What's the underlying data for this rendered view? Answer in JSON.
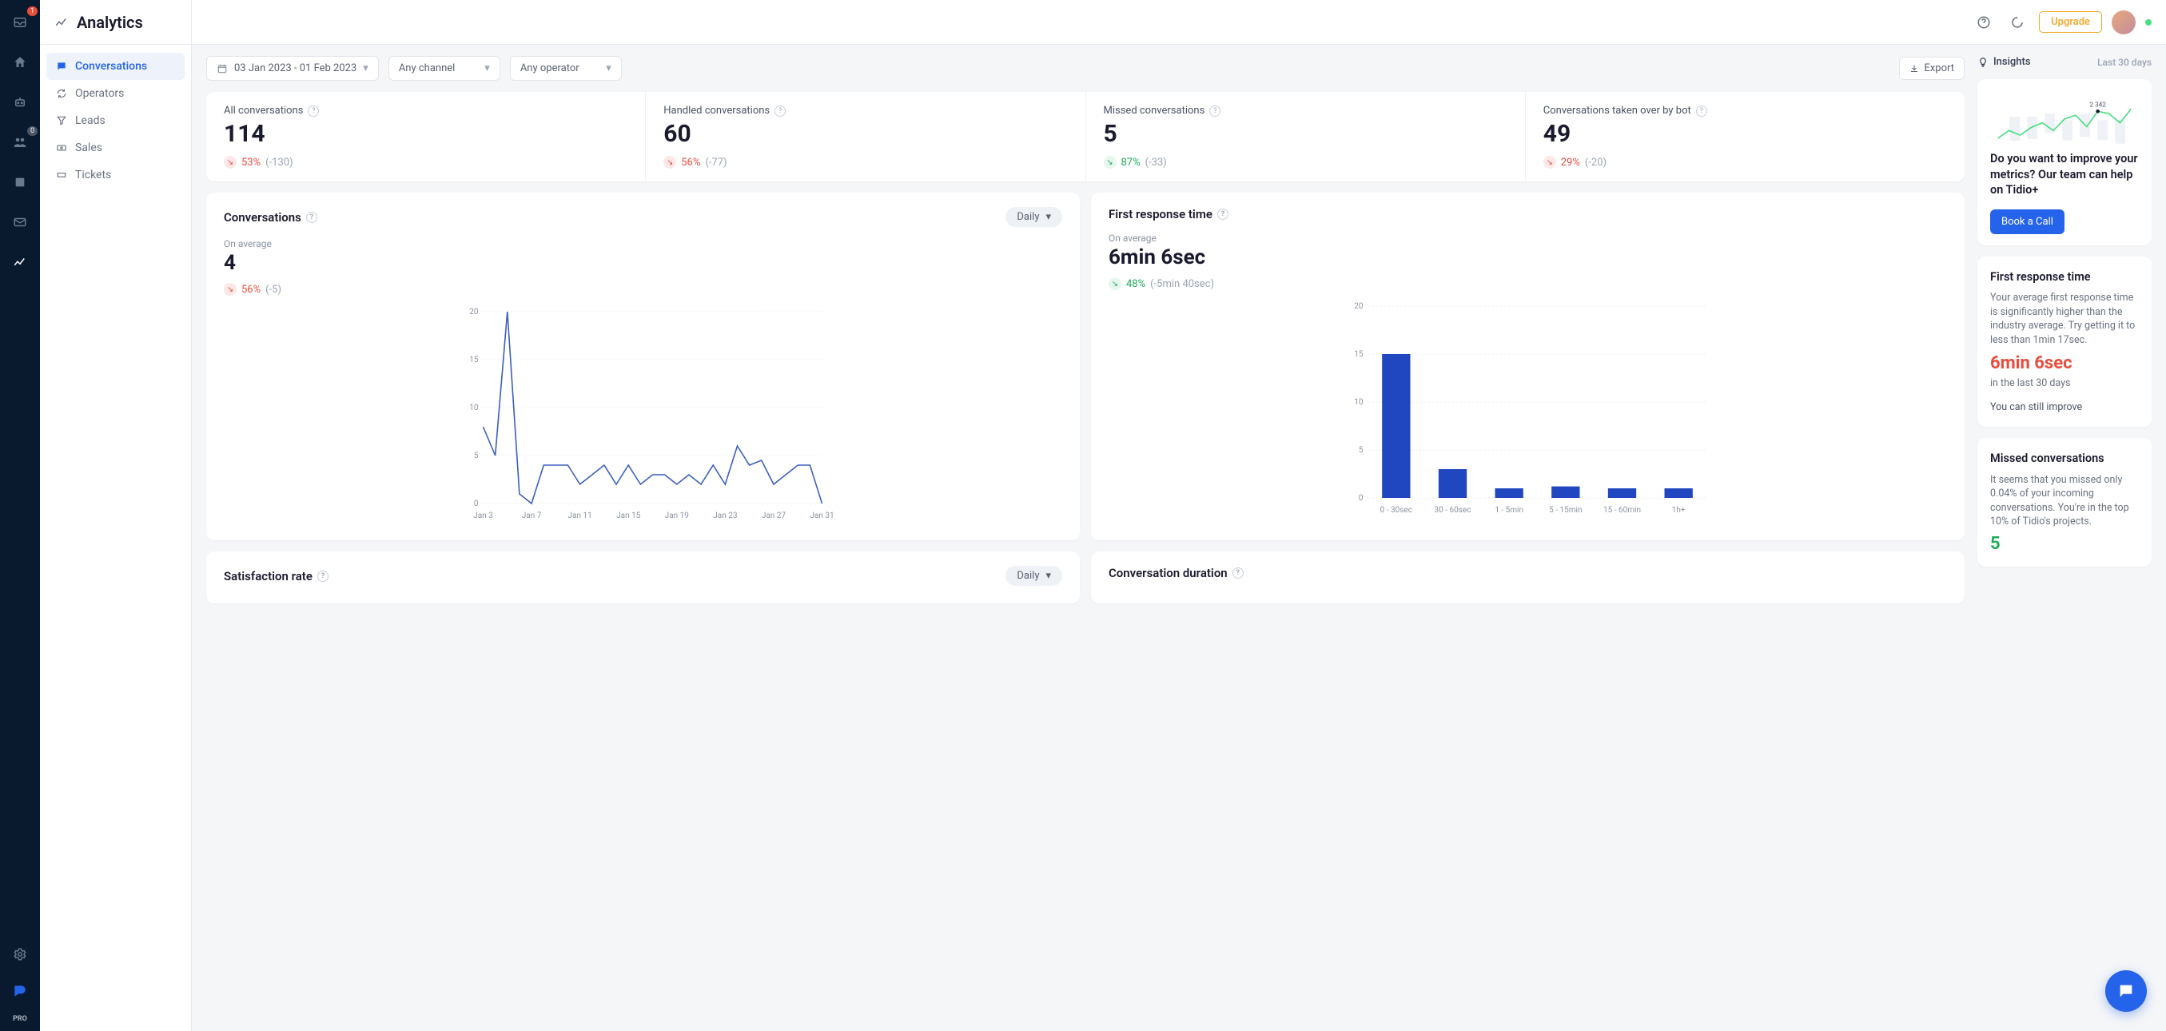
{
  "page_title": "Analytics",
  "icon_sidebar": {
    "badges": {
      "inbox": "1",
      "contacts": "0"
    },
    "pro_label": "PRO"
  },
  "sub_nav": {
    "items": [
      {
        "label": "Conversations",
        "icon": "chat"
      },
      {
        "label": "Operators",
        "icon": "refresh"
      },
      {
        "label": "Leads",
        "icon": "funnel"
      },
      {
        "label": "Sales",
        "icon": "cash"
      },
      {
        "label": "Tickets",
        "icon": "ticket"
      }
    ]
  },
  "top_header": {
    "upgrade_label": "Upgrade"
  },
  "filters": {
    "date_range": "03 Jan 2023 - 01 Feb 2023",
    "channel": "Any channel",
    "operator": "Any operator",
    "export_label": "Export"
  },
  "metrics": [
    {
      "label": "All conversations",
      "value": "114",
      "pct": "53%",
      "dir": "down",
      "abs": "(-130)"
    },
    {
      "label": "Handled conversations",
      "value": "60",
      "pct": "56%",
      "dir": "down",
      "abs": "(-77)"
    },
    {
      "label": "Missed conversations",
      "value": "5",
      "pct": "87%",
      "dir": "up",
      "abs": "(-33)"
    },
    {
      "label": "Conversations taken over by bot",
      "value": "49",
      "pct": "29%",
      "dir": "down",
      "abs": "(-20)"
    }
  ],
  "conversations_chart": {
    "title": "Conversations",
    "period_select": "Daily",
    "avg_label": "On average",
    "avg_value": "4",
    "change_pct": "56%",
    "change_dir": "down",
    "change_abs": "(-5)",
    "yticks": [
      0,
      5,
      10,
      15,
      20
    ],
    "ymax": 20,
    "xlabels": [
      "Jan 3",
      "Jan 7",
      "Jan 11",
      "Jan 15",
      "Jan 19",
      "Jan 23",
      "Jan 27",
      "Jan 31"
    ],
    "values": [
      8,
      5,
      20,
      1,
      0,
      4,
      4,
      4,
      2,
      3,
      4,
      2,
      4,
      2,
      3,
      3,
      2,
      3,
      2,
      4,
      2,
      6,
      4,
      4.5,
      2,
      3,
      4,
      4,
      0
    ],
    "line_color": "#3a5fbf",
    "grid_color": "#e9edf2"
  },
  "response_chart": {
    "title": "First response time",
    "avg_label": "On average",
    "avg_value": "6min 6sec",
    "change_pct": "48%",
    "change_dir": "up",
    "change_abs": "(-5min 40sec)",
    "yticks": [
      0,
      5,
      10,
      15,
      20
    ],
    "ymax": 20,
    "categories": [
      "0 - 30sec",
      "30 - 60sec",
      "1 - 5min",
      "5 - 15min",
      "15 - 60min",
      "1h+"
    ],
    "values": [
      15,
      3,
      1,
      1.2,
      1,
      1
    ],
    "bar_color": "#2147c0",
    "grid_color": "#e9edf2"
  },
  "satisfaction": {
    "title": "Satisfaction rate",
    "period_select": "Daily"
  },
  "duration": {
    "title": "Conversation duration"
  },
  "insights": {
    "header": "Insights",
    "last30": "Last 30 days",
    "spark": {
      "label": "2 342",
      "values": [
        10,
        20,
        14,
        24,
        30,
        20,
        35,
        40,
        25,
        45,
        42,
        30,
        48
      ],
      "color": "#4ade80"
    },
    "promo_title": "Do you want to improve your metrics? Our team can help on Tidio+",
    "promo_cta": "Book a Call",
    "frt_title": "First response time",
    "frt_body": "Your average first response time is significantly higher than the industry average. Try getting it to less than 1min 17sec.",
    "frt_value": "6min 6sec",
    "frt_sub": "in the last 30 days",
    "frt_foot": "You can still improve",
    "missed_title": "Missed conversations",
    "missed_body": "It seems that you missed only 0.04% of your incoming conversations. You're in the top 10% of Tidio's projects.",
    "missed_value": "5"
  }
}
